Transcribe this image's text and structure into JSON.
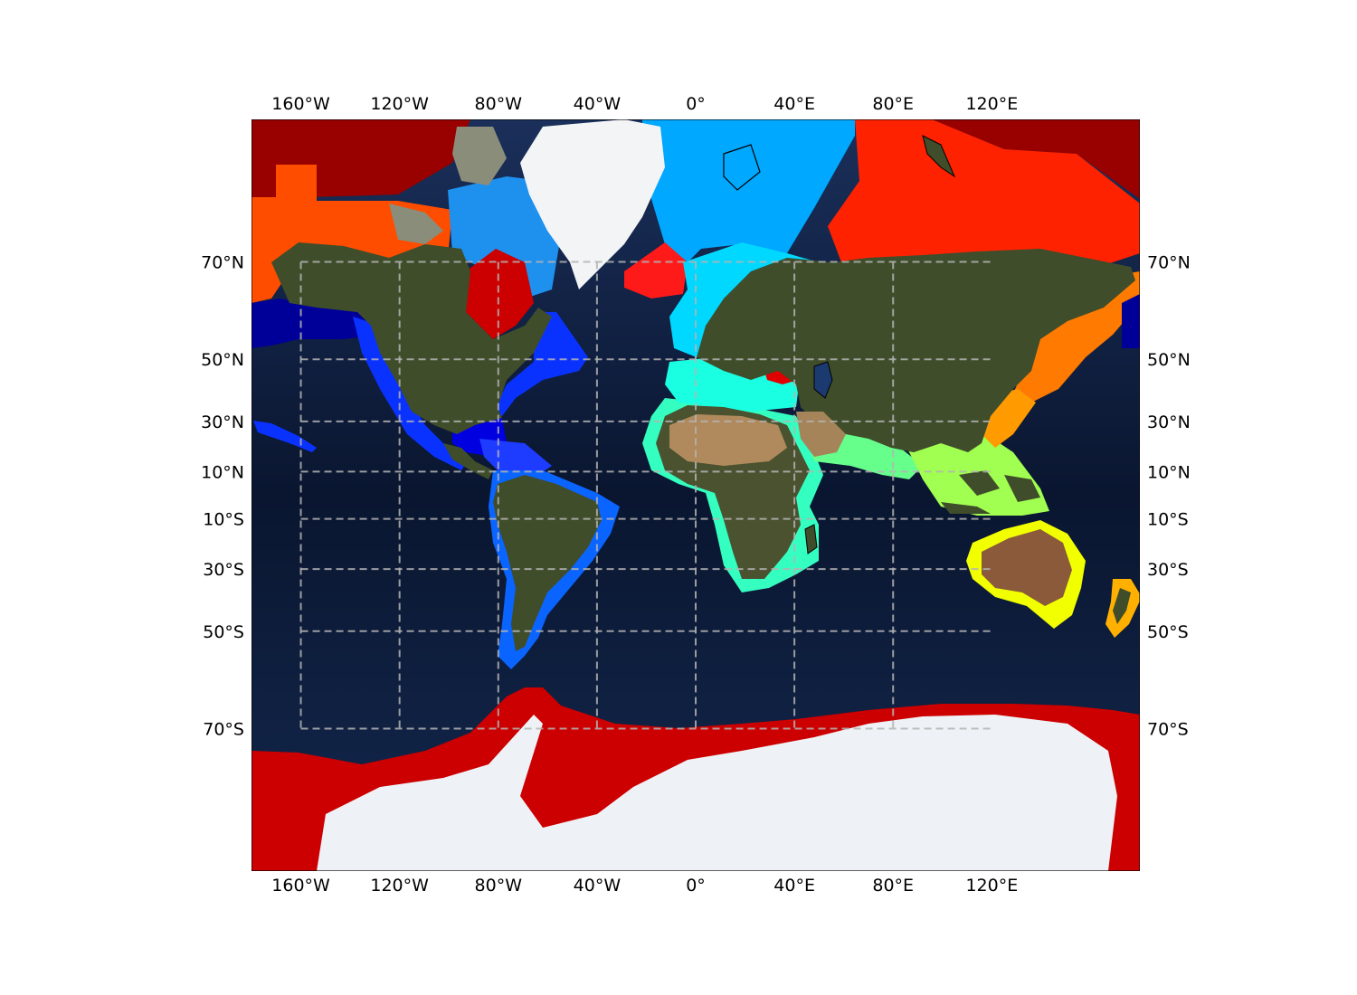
{
  "map": {
    "projection": "mercator",
    "extent": {
      "lon": [
        -180,
        180
      ],
      "lat": [
        -83,
        83
      ]
    },
    "colors": {
      "ocean_deep": "#0b1733",
      "ocean_mid": "#16305e",
      "land": "#3f4d2a",
      "desert": "#a8865a",
      "ice": "#eef2f6",
      "gridline": "#b4b4b4",
      "coastline": "#000000"
    },
    "gridlines": {
      "meridians": [
        -160,
        -120,
        -80,
        -40,
        0,
        40,
        80
      ],
      "parallels": [
        -70,
        -50,
        -30,
        -10,
        10,
        30,
        50,
        70
      ],
      "extent_lon": [
        -160,
        120
      ],
      "extent_lat": [
        -70,
        70
      ],
      "style": "dashed"
    },
    "lon_labels": [
      {
        "lon": -160,
        "text": "160°W"
      },
      {
        "lon": -120,
        "text": "120°W"
      },
      {
        "lon": -80,
        "text": "80°W"
      },
      {
        "lon": -40,
        "text": "40°W"
      },
      {
        "lon": 0,
        "text": "0°"
      },
      {
        "lon": 40,
        "text": "40°E"
      },
      {
        "lon": 80,
        "text": "80°E"
      },
      {
        "lon": 120,
        "text": "120°E"
      }
    ],
    "lat_labels": [
      {
        "lat": 70,
        "text": "70°N"
      },
      {
        "lat": 50,
        "text": "50°N"
      },
      {
        "lat": 30,
        "text": "30°N"
      },
      {
        "lat": 10,
        "text": "10°N"
      },
      {
        "lat": -10,
        "text": "10°S"
      },
      {
        "lat": -30,
        "text": "30°S"
      },
      {
        "lat": -50,
        "text": "50°S"
      },
      {
        "lat": -70,
        "text": "70°S"
      }
    ],
    "regions": [
      {
        "name": "arctic-dark-red",
        "color": "#990000"
      },
      {
        "name": "alaska-bering-orange",
        "color": "#ff4d00"
      },
      {
        "name": "canadian-archipelago-blue",
        "color": "#1e90ee"
      },
      {
        "name": "greenland-sea-sky",
        "color": "#00a8ff"
      },
      {
        "name": "hudson-bay-red",
        "color": "#cc0000"
      },
      {
        "name": "iceland-red",
        "color": "#ff1a1a"
      },
      {
        "name": "north-pacific-navy",
        "color": "#000099"
      },
      {
        "name": "northeast-pacific-blue",
        "color": "#0a32ff"
      },
      {
        "name": "gulf-of-mexico-blue",
        "color": "#0000e0"
      },
      {
        "name": "caribbean-blue",
        "color": "#1d3cff"
      },
      {
        "name": "south-america-blue",
        "color": "#0a64ff"
      },
      {
        "name": "europe-cyan",
        "color": "#00d8ff"
      },
      {
        "name": "mediterranean-aqua",
        "color": "#1affe1"
      },
      {
        "name": "africa-teal",
        "color": "#34ffc0"
      },
      {
        "name": "arabian-sea-green",
        "color": "#66ff8c"
      },
      {
        "name": "southeast-asia-yellowgreen",
        "color": "#a0ff50"
      },
      {
        "name": "east-china-orange",
        "color": "#ff9a00"
      },
      {
        "name": "siberia-red",
        "color": "#ff2200"
      },
      {
        "name": "okhotsk-orange",
        "color": "#ff7a00"
      },
      {
        "name": "australia-yellow",
        "color": "#f2ff00"
      },
      {
        "name": "new-zealand-orange",
        "color": "#ffb000"
      },
      {
        "name": "black-sea-red",
        "color": "#e00000"
      },
      {
        "name": "antarctic-red",
        "color": "#cc0000"
      }
    ]
  }
}
